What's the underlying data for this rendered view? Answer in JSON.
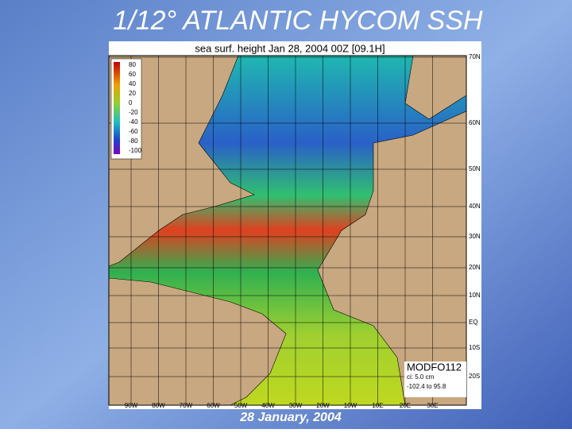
{
  "title": "1/12° ATLANTIC HYCOM SSH",
  "map": {
    "header": "sea surf. height   Jan 28, 2004  00Z   [09.1H]",
    "colorbar": {
      "labels": [
        "80",
        "60",
        "40",
        "20",
        "0",
        "-20",
        "-40",
        "-60",
        "-80",
        "-100"
      ]
    },
    "lat_labels": [
      "70N",
      "60N",
      "50N",
      "40N",
      "30N",
      "20N",
      "10N",
      "EQ",
      "10S",
      "20S"
    ],
    "lon_labels": [
      "90W",
      "80W",
      "70W",
      "60W",
      "50W",
      "40W",
      "30W",
      "20W",
      "10W",
      "10E",
      "20E",
      "30E"
    ],
    "info": [
      "MODFO112",
      "ci: 5.0 cm",
      "-102.4 to 95.8"
    ]
  },
  "caption": "28 January, 2004"
}
